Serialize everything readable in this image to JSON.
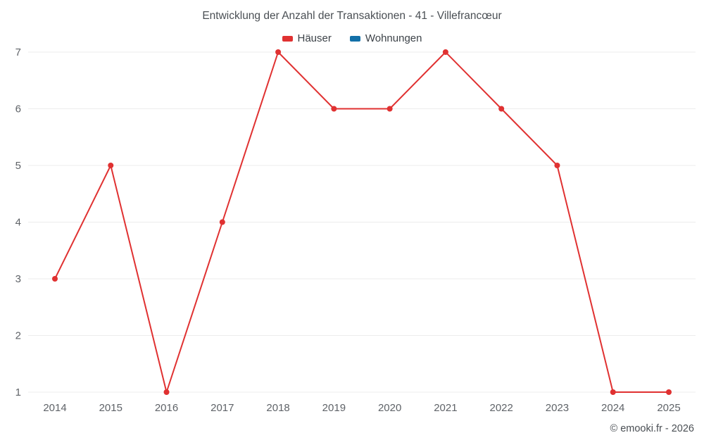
{
  "chart_data": {
    "type": "line",
    "title": "Entwicklung der Anzahl der Transaktionen - 41 - Villefrancœur",
    "categories": [
      "2014",
      "2015",
      "2016",
      "2017",
      "2018",
      "2019",
      "2020",
      "2021",
      "2022",
      "2023",
      "2024",
      "2025"
    ],
    "series": [
      {
        "name": "Häuser",
        "color": "#e03131",
        "values": [
          3,
          5,
          1,
          4,
          7,
          6,
          6,
          7,
          6,
          5,
          1,
          1
        ]
      },
      {
        "name": "Wohnungen",
        "color": "#1270a8",
        "values": []
      }
    ],
    "xlabel": "",
    "ylabel": "",
    "ylim": [
      1,
      7
    ],
    "yticks": [
      1,
      2,
      3,
      4,
      5,
      6,
      7
    ],
    "grid": true,
    "legend_position": "top",
    "footer": "© emooki.fr - 2026",
    "colors": {
      "grid": "#ececec",
      "tick_label": "#5f6368",
      "title_text": "#4a4f54"
    }
  }
}
